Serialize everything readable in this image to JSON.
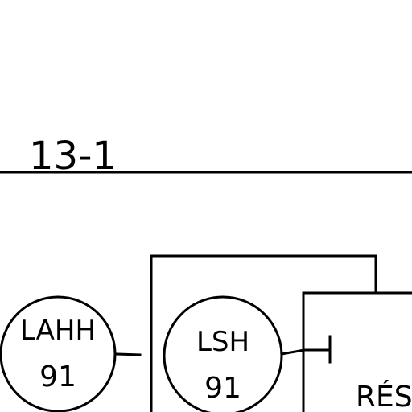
{
  "diagram": {
    "line_label": "13-1",
    "instruments": [
      {
        "tag": "LAHH",
        "number": "91"
      },
      {
        "tag": "LSH",
        "number": "91"
      }
    ],
    "vessel_label_partial": "RÉSE"
  }
}
